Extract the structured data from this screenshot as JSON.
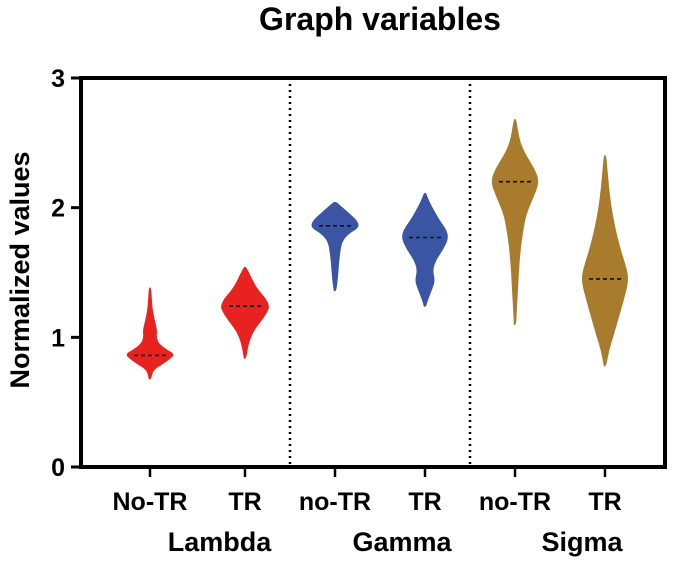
{
  "chart_data": {
    "type": "violin",
    "title": "Graph variables",
    "ylabel": "Normalized values",
    "xlabel": "",
    "ylim": [
      0,
      3
    ],
    "yticks": [
      0,
      1,
      2,
      3
    ],
    "groups": [
      {
        "name": "Lambda",
        "categories": [
          {
            "label": "No-TR",
            "color": "#e8231f",
            "median": 0.86,
            "min": 0.68,
            "max": 1.38,
            "profile": [
              [
                0.68,
                0.03
              ],
              [
                0.75,
                0.12
              ],
              [
                0.8,
                0.55
              ],
              [
                0.84,
                0.85
              ],
              [
                0.87,
                1.0
              ],
              [
                0.9,
                0.7
              ],
              [
                0.95,
                0.35
              ],
              [
                1.0,
                0.25
              ],
              [
                1.05,
                0.28
              ],
              [
                1.1,
                0.22
              ],
              [
                1.18,
                0.12
              ],
              [
                1.25,
                0.07
              ],
              [
                1.32,
                0.05
              ],
              [
                1.38,
                0.02
              ]
            ]
          },
          {
            "label": "TR",
            "color": "#e8231f",
            "median": 1.24,
            "min": 0.84,
            "max": 1.54,
            "profile": [
              [
                0.84,
                0.03
              ],
              [
                0.9,
                0.08
              ],
              [
                0.98,
                0.18
              ],
              [
                1.05,
                0.35
              ],
              [
                1.1,
                0.55
              ],
              [
                1.15,
                0.75
              ],
              [
                1.2,
                0.92
              ],
              [
                1.24,
                1.0
              ],
              [
                1.3,
                0.85
              ],
              [
                1.36,
                0.55
              ],
              [
                1.42,
                0.35
              ],
              [
                1.48,
                0.2
              ],
              [
                1.54,
                0.03
              ]
            ]
          }
        ]
      },
      {
        "name": "Gamma",
        "categories": [
          {
            "label": "no-TR",
            "color": "#3a55a4",
            "median": 1.86,
            "min": 1.36,
            "max": 2.04,
            "profile": [
              [
                1.36,
                0.03
              ],
              [
                1.42,
                0.08
              ],
              [
                1.5,
                0.12
              ],
              [
                1.58,
                0.15
              ],
              [
                1.66,
                0.2
              ],
              [
                1.74,
                0.28
              ],
              [
                1.8,
                0.55
              ],
              [
                1.85,
                1.0
              ],
              [
                1.9,
                0.9
              ],
              [
                1.95,
                0.6
              ],
              [
                2.0,
                0.3
              ],
              [
                2.04,
                0.05
              ]
            ]
          },
          {
            "label": "TR",
            "color": "#3a55a4",
            "median": 1.77,
            "min": 1.24,
            "max": 2.11,
            "profile": [
              [
                1.24,
                0.03
              ],
              [
                1.3,
                0.12
              ],
              [
                1.38,
                0.3
              ],
              [
                1.44,
                0.4
              ],
              [
                1.52,
                0.3
              ],
              [
                1.6,
                0.45
              ],
              [
                1.68,
                0.75
              ],
              [
                1.76,
                0.95
              ],
              [
                1.82,
                0.9
              ],
              [
                1.9,
                0.6
              ],
              [
                1.98,
                0.35
              ],
              [
                2.05,
                0.15
              ],
              [
                2.11,
                0.03
              ]
            ]
          }
        ]
      },
      {
        "name": "Sigma",
        "categories": [
          {
            "label": "no-TR",
            "color": "#a97b2d",
            "median": 2.2,
            "min": 1.1,
            "max": 2.68,
            "profile": [
              [
                1.1,
                0.03
              ],
              [
                1.2,
                0.05
              ],
              [
                1.35,
                0.1
              ],
              [
                1.5,
                0.14
              ],
              [
                1.65,
                0.2
              ],
              [
                1.8,
                0.3
              ],
              [
                1.95,
                0.45
              ],
              [
                2.08,
                0.75
              ],
              [
                2.2,
                1.0
              ],
              [
                2.3,
                0.8
              ],
              [
                2.4,
                0.45
              ],
              [
                2.5,
                0.2
              ],
              [
                2.6,
                0.1
              ],
              [
                2.68,
                0.03
              ]
            ]
          },
          {
            "label": "TR",
            "color": "#a97b2d",
            "median": 1.45,
            "min": 0.78,
            "max": 2.4,
            "profile": [
              [
                0.78,
                0.03
              ],
              [
                0.9,
                0.15
              ],
              [
                1.02,
                0.35
              ],
              [
                1.15,
                0.55
              ],
              [
                1.28,
                0.75
              ],
              [
                1.4,
                0.92
              ],
              [
                1.48,
                0.95
              ],
              [
                1.58,
                0.8
              ],
              [
                1.7,
                0.6
              ],
              [
                1.85,
                0.4
              ],
              [
                2.0,
                0.25
              ],
              [
                2.15,
                0.15
              ],
              [
                2.3,
                0.08
              ],
              [
                2.4,
                0.03
              ]
            ]
          }
        ]
      }
    ],
    "separators": "dotted vertical lines between groups"
  }
}
